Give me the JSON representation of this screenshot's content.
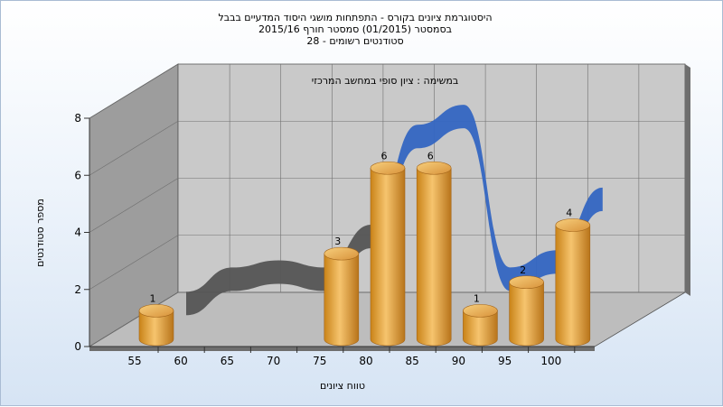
{
  "chart_data": {
    "type": "bar",
    "title_lines": [
      "היסטוגרמת ציונים בקורס - התפתחות מושגי היסוד המדעיים בבבל",
      "בסמסטר  (01/2015)  סמסטר חורף 2015/16",
      "סטודנטים רשומים - 28"
    ],
    "subtitle": "במשימה : ציון סופי במחשב המרכזי",
    "xlabel": "טווח ציונים",
    "ylabel": "מספר סטודנטים",
    "categories": [
      "55",
      "60",
      "65",
      "70",
      "75",
      "80",
      "85",
      "90",
      "95",
      "100"
    ],
    "values": [
      1,
      0,
      0,
      0,
      3,
      6,
      6,
      1,
      2,
      4
    ],
    "y_ticks": [
      "0",
      "2",
      "4",
      "6",
      "8"
    ],
    "ylim": [
      0,
      8
    ],
    "trend_line": {
      "description": "smoothed distribution ribbon",
      "values": [
        0.15,
        1.0,
        1.25,
        1.0,
        2.5,
        6.0,
        6.7,
        1.0,
        1.6,
        3.8
      ]
    },
    "colors": {
      "bar": "#e9a545",
      "ribbon_front": "#3b6cc4",
      "ribbon_back": "#5b5b5b",
      "wall": "#a9a9a9",
      "floor": "#c6c6c6"
    },
    "grid": true,
    "view": "3d"
  }
}
